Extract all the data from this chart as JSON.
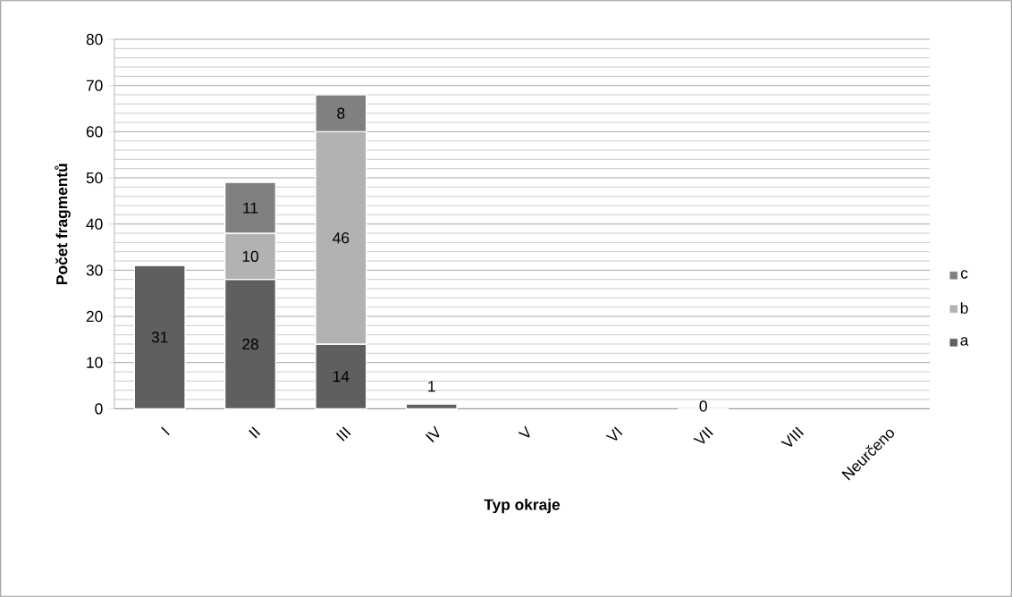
{
  "chart_data": {
    "type": "bar",
    "stacked": true,
    "xlabel": "Typ okraje",
    "ylabel": "Počet fragmentů",
    "categories": [
      "I",
      "II",
      "III",
      "IV",
      "V",
      "VI",
      "VII",
      "VIII",
      "Neurčeno"
    ],
    "series": [
      {
        "name": "a",
        "color": "#5f5f5f",
        "values": [
          31,
          28,
          14,
          1,
          null,
          null,
          0,
          null,
          null
        ],
        "value_labels": [
          "31",
          "28",
          "14",
          "1",
          null,
          null,
          "0",
          null,
          null
        ]
      },
      {
        "name": "b",
        "color": "#b2b2b2",
        "values": [
          null,
          10,
          46,
          null,
          null,
          null,
          null,
          null,
          null
        ],
        "value_labels": [
          null,
          "10",
          "46",
          null,
          null,
          null,
          null,
          null,
          null
        ]
      },
      {
        "name": "c",
        "color": "#808080",
        "values": [
          null,
          11,
          8,
          null,
          null,
          null,
          null,
          null,
          null
        ],
        "value_labels": [
          null,
          "11",
          "8",
          null,
          null,
          null,
          null,
          null,
          null
        ]
      }
    ],
    "ylim": [
      0,
      80
    ],
    "yticks": [
      0,
      10,
      20,
      30,
      40,
      50,
      60,
      70,
      80
    ],
    "grid": "y",
    "legend": "right"
  }
}
